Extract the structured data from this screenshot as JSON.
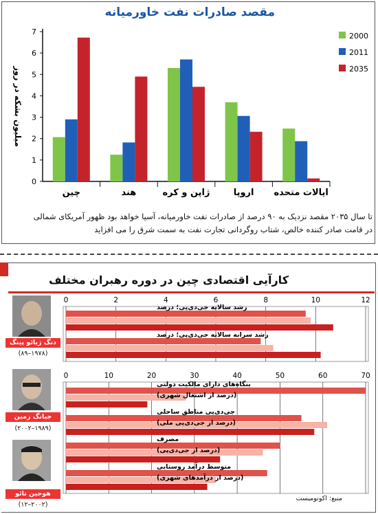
{
  "colors": {
    "y2000": "#7fc54a",
    "y2011": "#1f5fb8",
    "y2035": "#c4232c",
    "rule_red": "#d02a24",
    "bar_dark": "#e0524a",
    "bar_light": "#f6b3a6",
    "bar_deep": "#c8211f"
  },
  "top": {
    "title": "مقصد صادرات نفت خاورمیانه",
    "caption_line1": "تا سال ۲۰۳۵ مقصد نزدیک به ۹۰ درصد از صادرات نفت خاورمیانه، آسیا خواهد بود ظهور آمریکای شمالی",
    "caption_line2": "در قامت صادر کننده خالص، شتاب روگردانی تجارت نفت به سمت شرق را می افزاید"
  },
  "bottom": {
    "title": "کارآیی اقتصادی چین در دوره رهبران مختلف",
    "source": "منبع: اکونومیست",
    "leaders": [
      {
        "name": "دنگ ژیائو پینگ",
        "years": "(۱۹۷۸–۸۹)",
        "icon": "portrait-icon"
      },
      {
        "name": "جیانگ زمین",
        "years": "(۱۹۸۹–۲۰۰۲)",
        "icon": "portrait-icon"
      },
      {
        "name": "هوجین تائو",
        "years": "(۲۰۰۲–۱۲)",
        "icon": "portrait-icon"
      }
    ]
  },
  "chart_data": [
    {
      "type": "bar",
      "title": "مقصد صادرات نفت خاورمیانه",
      "ylabel": "میلیون بشکه در روز",
      "ylim": [
        0,
        7
      ],
      "yticks": [
        "0",
        "1",
        "2",
        "3",
        "4",
        "5",
        "6",
        "7"
      ],
      "categories": [
        "چین",
        "هند",
        "ژاپن و کره",
        "اروپا",
        "ایالات متحده"
      ],
      "series": [
        {
          "name": "2000",
          "color": "#7fc54a",
          "values": [
            2.07,
            1.25,
            5.3,
            3.7,
            2.47
          ]
        },
        {
          "name": "2011",
          "color": "#1f5fb8",
          "values": [
            2.9,
            1.82,
            5.7,
            3.06,
            1.88
          ]
        },
        {
          "name": "2035",
          "color": "#c4232c",
          "values": [
            6.72,
            4.9,
            4.42,
            2.32,
            0.14
          ]
        }
      ],
      "legend": "top-right",
      "grid": false
    },
    {
      "type": "bar",
      "orientation": "horizontal",
      "xlim": [
        0,
        12
      ],
      "xticks": [
        "0",
        "2",
        "4",
        "6",
        "8",
        "10",
        "12"
      ],
      "leader_series": [
        "دنگ ژیائو پینگ",
        "جیانگ زمین",
        "هوجین تائو"
      ],
      "categories": [
        "رشد سالانه جی‌دی‌پی؛ درصد",
        "رشد سرانه سالانه جی‌دی‌پی؛ درصد"
      ],
      "values": [
        [
          9.6,
          9.8,
          10.7
        ],
        [
          7.8,
          8.3,
          10.2
        ]
      ]
    },
    {
      "type": "bar",
      "orientation": "horizontal",
      "xlim": [
        0,
        70
      ],
      "xticks": [
        "0",
        "10",
        "20",
        "30",
        "40",
        "50",
        "60",
        "70"
      ],
      "leader_series": [
        "دنگ ژیائو پینگ",
        "جیانگ زمین",
        "هوجین تائو"
      ],
      "categories": [
        "بنگاه‌های دارای مالکیت دولتی (درصد از اشتغال شهری)",
        "جی‌دی‌پی مناطق ساحلی (درصد از جی‌دی‌پی ملی)",
        "مصرف (درصد از جی‌دی‌پی)",
        "متوسط درآمد روستایی (درصد از درآمدهای شهری)"
      ],
      "values": [
        [
          70,
          28,
          19
        ],
        [
          55,
          61,
          58
        ],
        [
          50,
          46,
          36
        ],
        [
          47,
          35,
          33
        ]
      ]
    }
  ]
}
